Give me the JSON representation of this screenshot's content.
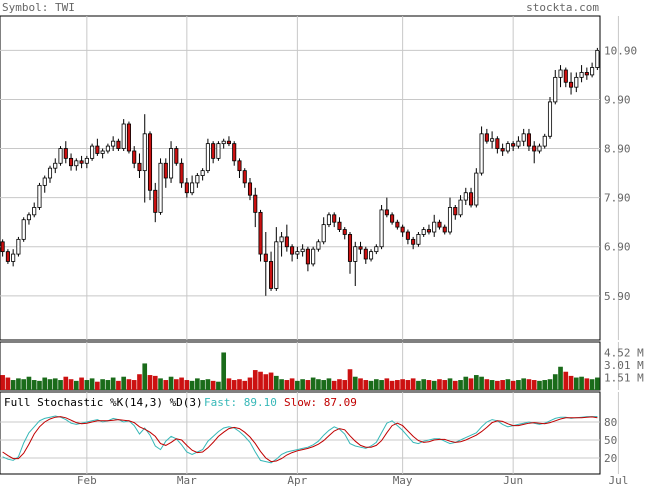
{
  "header": {
    "symbol_label": "Symbol: TWI",
    "source": "stockta.com"
  },
  "price_axis": {
    "ticks": [
      "10.90",
      "9.90",
      "8.90",
      "7.90",
      "6.90",
      "5.90"
    ],
    "tick_values": [
      10.9,
      9.9,
      8.9,
      7.9,
      6.9,
      5.9
    ],
    "range": [
      5.0,
      11.6
    ]
  },
  "volume_axis": {
    "ticks": [
      "4.52 M",
      "3.01 M",
      "1.51 M"
    ],
    "tick_values": [
      4.52,
      3.01,
      1.51
    ],
    "max": 5.3
  },
  "stochastic": {
    "label": "Full Stochastic %K(14,3) %D(3)",
    "fast_label": "Fast: 89.10",
    "slow_label": "Slow: 87.09",
    "ticks": [
      "80",
      "50",
      "20"
    ],
    "tick_values": [
      80,
      50,
      20
    ]
  },
  "x_axis": {
    "months": [
      "Feb",
      "Mar",
      "Apr",
      "May",
      "Jun",
      "Jul"
    ]
  },
  "colors": {
    "up": "#ffffff",
    "down": "#cc1111",
    "vol_up": "#1a6b1a",
    "vol_down": "#cc1111",
    "grid": "#c8c8c8",
    "fast": "#37b8b8",
    "slow": "#c00000"
  },
  "chart_data": {
    "type": "candlestick",
    "months_at_index": [
      16,
      35,
      56,
      76,
      97,
      117
    ],
    "ohlc": [
      [
        7.0,
        7.05,
        6.7,
        6.8
      ],
      [
        6.8,
        6.85,
        6.55,
        6.6
      ],
      [
        6.6,
        6.85,
        6.5,
        6.75
      ],
      [
        6.75,
        7.1,
        6.7,
        7.05
      ],
      [
        7.05,
        7.5,
        7.0,
        7.45
      ],
      [
        7.45,
        7.6,
        7.35,
        7.55
      ],
      [
        7.55,
        7.8,
        7.5,
        7.7
      ],
      [
        7.7,
        8.2,
        7.65,
        8.15
      ],
      [
        8.15,
        8.35,
        8.0,
        8.3
      ],
      [
        8.3,
        8.55,
        8.2,
        8.5
      ],
      [
        8.5,
        8.7,
        8.4,
        8.6
      ],
      [
        8.6,
        8.95,
        8.55,
        8.9
      ],
      [
        8.9,
        9.05,
        8.6,
        8.7
      ],
      [
        8.7,
        8.8,
        8.45,
        8.55
      ],
      [
        8.55,
        8.7,
        8.45,
        8.65
      ],
      [
        8.65,
        8.75,
        8.5,
        8.6
      ],
      [
        8.6,
        8.75,
        8.5,
        8.7
      ],
      [
        8.7,
        9.0,
        8.65,
        8.95
      ],
      [
        8.95,
        9.1,
        8.75,
        8.8
      ],
      [
        8.8,
        8.9,
        8.7,
        8.85
      ],
      [
        8.85,
        9.0,
        8.8,
        8.95
      ],
      [
        8.95,
        9.15,
        8.85,
        9.05
      ],
      [
        9.05,
        9.1,
        8.85,
        8.9
      ],
      [
        8.9,
        9.5,
        8.85,
        9.4
      ],
      [
        9.4,
        9.45,
        8.8,
        8.85
      ],
      [
        8.85,
        8.95,
        8.5,
        8.6
      ],
      [
        8.6,
        8.8,
        8.3,
        8.45
      ],
      [
        8.45,
        9.6,
        7.8,
        9.2
      ],
      [
        9.2,
        9.25,
        7.85,
        8.05
      ],
      [
        8.05,
        8.2,
        7.4,
        7.6
      ],
      [
        7.6,
        8.7,
        7.55,
        8.6
      ],
      [
        8.6,
        8.7,
        8.1,
        8.3
      ],
      [
        8.3,
        9.05,
        8.2,
        8.9
      ],
      [
        8.9,
        8.95,
        8.55,
        8.6
      ],
      [
        8.6,
        8.7,
        8.1,
        8.2
      ],
      [
        8.2,
        8.3,
        7.9,
        8.0
      ],
      [
        8.0,
        8.35,
        7.95,
        8.2
      ],
      [
        8.2,
        8.4,
        8.1,
        8.35
      ],
      [
        8.35,
        8.5,
        8.25,
        8.45
      ],
      [
        8.45,
        9.1,
        8.4,
        9.0
      ],
      [
        9.0,
        9.05,
        8.6,
        8.7
      ],
      [
        8.7,
        9.05,
        8.65,
        9.0
      ],
      [
        9.0,
        9.1,
        8.9,
        9.05
      ],
      [
        9.05,
        9.15,
        8.95,
        9.0
      ],
      [
        9.0,
        9.05,
        8.55,
        8.65
      ],
      [
        8.65,
        8.7,
        8.3,
        8.45
      ],
      [
        8.45,
        8.5,
        8.1,
        8.2
      ],
      [
        8.2,
        8.3,
        7.85,
        7.95
      ],
      [
        7.95,
        8.1,
        7.3,
        7.6
      ],
      [
        7.6,
        7.65,
        6.6,
        6.75
      ],
      [
        6.75,
        7.2,
        5.9,
        6.6
      ],
      [
        6.6,
        6.8,
        6.0,
        6.05
      ],
      [
        6.05,
        7.3,
        6.0,
        7.0
      ],
      [
        7.0,
        7.2,
        6.7,
        7.1
      ],
      [
        7.1,
        7.35,
        6.8,
        6.9
      ],
      [
        6.9,
        6.95,
        6.6,
        6.75
      ],
      [
        6.75,
        6.9,
        6.65,
        6.8
      ],
      [
        6.8,
        6.95,
        6.7,
        6.85
      ],
      [
        6.85,
        6.9,
        6.4,
        6.55
      ],
      [
        6.55,
        6.9,
        6.5,
        6.85
      ],
      [
        6.85,
        7.05,
        6.8,
        7.0
      ],
      [
        7.0,
        7.5,
        6.95,
        7.35
      ],
      [
        7.35,
        7.6,
        7.3,
        7.55
      ],
      [
        7.55,
        7.6,
        7.3,
        7.4
      ],
      [
        7.4,
        7.5,
        7.2,
        7.25
      ],
      [
        7.25,
        7.3,
        7.05,
        7.15
      ],
      [
        7.15,
        7.2,
        6.35,
        6.6
      ],
      [
        6.6,
        7.0,
        6.1,
        6.9
      ],
      [
        6.9,
        7.0,
        6.75,
        6.85
      ],
      [
        6.85,
        6.9,
        6.55,
        6.65
      ],
      [
        6.65,
        6.85,
        6.6,
        6.8
      ],
      [
        6.8,
        6.95,
        6.75,
        6.9
      ],
      [
        6.9,
        7.75,
        6.85,
        7.65
      ],
      [
        7.65,
        7.9,
        7.5,
        7.55
      ],
      [
        7.55,
        7.6,
        7.35,
        7.4
      ],
      [
        7.4,
        7.45,
        7.25,
        7.3
      ],
      [
        7.3,
        7.35,
        7.1,
        7.2
      ],
      [
        7.2,
        7.25,
        6.95,
        7.05
      ],
      [
        7.05,
        7.1,
        6.85,
        6.95
      ],
      [
        6.95,
        7.2,
        6.9,
        7.15
      ],
      [
        7.15,
        7.3,
        7.1,
        7.25
      ],
      [
        7.25,
        7.35,
        7.15,
        7.2
      ],
      [
        7.2,
        7.55,
        7.1,
        7.4
      ],
      [
        7.4,
        7.45,
        7.25,
        7.3
      ],
      [
        7.3,
        7.35,
        7.15,
        7.2
      ],
      [
        7.2,
        7.9,
        7.15,
        7.7
      ],
      [
        7.7,
        7.75,
        7.45,
        7.55
      ],
      [
        7.55,
        7.95,
        7.5,
        7.85
      ],
      [
        7.85,
        8.1,
        7.75,
        8.0
      ],
      [
        8.0,
        8.1,
        7.7,
        7.75
      ],
      [
        7.75,
        8.5,
        7.7,
        8.4
      ],
      [
        8.4,
        9.35,
        8.35,
        9.2
      ],
      [
        9.2,
        9.3,
        9.0,
        9.05
      ],
      [
        9.05,
        9.25,
        8.9,
        9.1
      ],
      [
        9.1,
        9.15,
        8.8,
        8.9
      ],
      [
        8.9,
        9.0,
        8.75,
        8.85
      ],
      [
        8.85,
        9.05,
        8.8,
        9.0
      ],
      [
        9.0,
        9.05,
        8.85,
        8.95
      ],
      [
        8.95,
        9.15,
        8.9,
        9.05
      ],
      [
        9.05,
        9.3,
        8.95,
        9.2
      ],
      [
        9.2,
        9.3,
        8.85,
        8.95
      ],
      [
        8.95,
        9.05,
        8.6,
        8.85
      ],
      [
        8.85,
        9.0,
        8.8,
        8.95
      ],
      [
        8.95,
        9.2,
        8.9,
        9.15
      ],
      [
        9.15,
        9.95,
        9.1,
        9.85
      ],
      [
        9.85,
        10.5,
        9.8,
        10.35
      ],
      [
        10.35,
        10.6,
        10.15,
        10.5
      ],
      [
        10.5,
        10.55,
        10.15,
        10.25
      ],
      [
        10.25,
        10.45,
        10.0,
        10.15
      ],
      [
        10.15,
        10.45,
        10.05,
        10.35
      ],
      [
        10.35,
        10.6,
        10.25,
        10.45
      ],
      [
        10.45,
        10.55,
        10.3,
        10.4
      ],
      [
        10.4,
        10.65,
        10.35,
        10.55
      ],
      [
        10.55,
        10.95,
        10.5,
        10.9
      ]
    ],
    "volume": [
      1.8,
      1.5,
      1.2,
      1.4,
      1.3,
      1.6,
      1.2,
      1.1,
      1.5,
      1.3,
      1.4,
      1.2,
      1.6,
      1.3,
      1.1,
      1.5,
      1.2,
      1.4,
      1.0,
      1.3,
      1.2,
      1.5,
      1.1,
      1.6,
      1.3,
      1.2,
      1.9,
      3.2,
      1.8,
      1.7,
      1.4,
      1.2,
      1.6,
      1.3,
      1.5,
      1.2,
      1.1,
      1.4,
      1.2,
      1.3,
      1.1,
      1.0,
      4.52,
      1.4,
      1.2,
      1.3,
      1.1,
      1.5,
      2.4,
      2.2,
      1.9,
      2.1,
      1.7,
      1.3,
      1.2,
      1.4,
      1.1,
      1.3,
      1.2,
      1.5,
      1.3,
      1.2,
      1.4,
      1.1,
      1.3,
      1.2,
      2.5,
      1.6,
      1.4,
      1.2,
      1.1,
      1.3,
      1.2,
      1.4,
      1.1,
      1.2,
      1.3,
      1.2,
      1.4,
      1.1,
      1.3,
      1.2,
      1.1,
      1.3,
      1.2,
      1.4,
      1.1,
      1.2,
      1.6,
      1.4,
      1.8,
      1.6,
      1.3,
      1.2,
      1.1,
      1.2,
      1.3,
      1.1,
      1.2,
      1.4,
      1.3,
      1.2,
      1.1,
      1.2,
      1.3,
      1.9,
      2.8,
      2.2,
      1.7,
      1.5,
      1.6,
      1.4,
      1.3,
      1.5
    ],
    "stoch_fast": [
      22,
      18,
      16,
      22,
      45,
      62,
      72,
      82,
      86,
      88,
      90,
      88,
      84,
      78,
      76,
      78,
      80,
      82,
      84,
      80,
      82,
      86,
      84,
      80,
      82,
      74,
      60,
      70,
      58,
      40,
      34,
      48,
      56,
      52,
      42,
      30,
      26,
      30,
      34,
      48,
      56,
      64,
      70,
      72,
      70,
      64,
      56,
      46,
      30,
      16,
      14,
      12,
      18,
      26,
      30,
      32,
      34,
      36,
      38,
      42,
      48,
      58,
      66,
      72,
      68,
      60,
      44,
      40,
      38,
      36,
      40,
      46,
      62,
      78,
      82,
      74,
      66,
      56,
      46,
      44,
      48,
      50,
      52,
      52,
      48,
      44,
      46,
      50,
      54,
      58,
      62,
      72,
      80,
      84,
      82,
      76,
      72,
      74,
      76,
      78,
      80,
      78,
      76,
      78,
      82,
      86,
      88,
      88,
      86,
      87,
      88,
      89,
      89,
      89.1
    ],
    "stoch_slow": [
      30,
      24,
      19,
      19,
      28,
      43,
      60,
      72,
      80,
      85,
      88,
      89,
      87,
      83,
      79,
      77,
      78,
      80,
      82,
      82,
      82,
      83,
      84,
      83,
      82,
      79,
      72,
      68,
      63,
      56,
      44,
      41,
      46,
      52,
      50,
      41,
      33,
      29,
      30,
      37,
      46,
      56,
      63,
      69,
      71,
      69,
      63,
      55,
      44,
      31,
      20,
      14,
      15,
      19,
      25,
      29,
      32,
      34,
      36,
      39,
      43,
      49,
      57,
      65,
      69,
      67,
      57,
      48,
      41,
      38,
      38,
      41,
      49,
      62,
      74,
      78,
      74,
      65,
      56,
      49,
      46,
      47,
      50,
      51,
      51,
      48,
      46,
      47,
      50,
      54,
      58,
      64,
      71,
      79,
      82,
      81,
      77,
      74,
      74,
      76,
      78,
      79,
      78,
      77,
      79,
      82,
      85,
      87,
      87,
      87,
      87,
      88,
      88.5,
      87.09
    ]
  }
}
